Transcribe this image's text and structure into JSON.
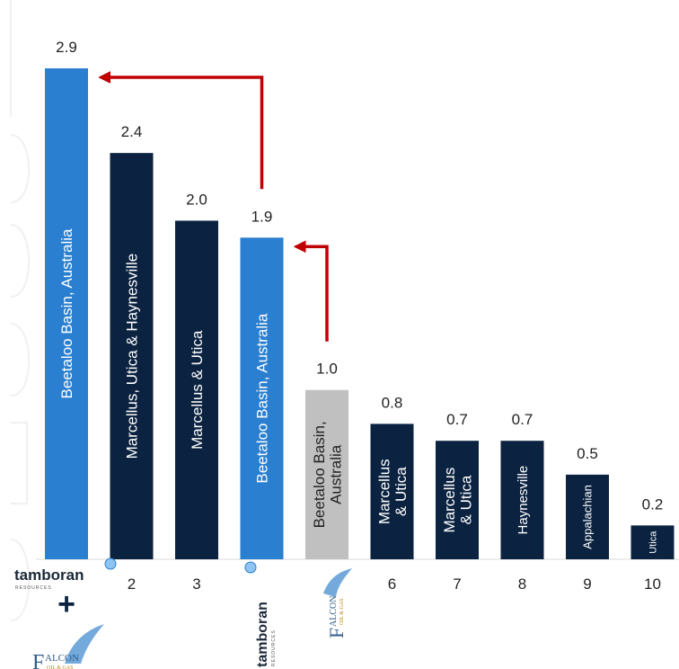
{
  "chart_data": {
    "type": "bar",
    "categories": [
      "tamboran + Falcon",
      "2",
      "3",
      "tamboran",
      "Falcon",
      "6",
      "7",
      "8",
      "9",
      "10"
    ],
    "values": [
      2.9,
      2.4,
      2.0,
      1.9,
      1.0,
      0.8,
      0.7,
      0.7,
      0.5,
      0.2
    ],
    "value_labels": [
      "2.9",
      "2.4",
      "2.0",
      "1.9",
      "1.0",
      "0.8",
      "0.7",
      "0.7",
      "0.5",
      "0.2"
    ],
    "bar_labels": [
      "Beetaloo Basin, Australia",
      "Marcellus, Utica & Haynesville",
      "Marcellus & Utica",
      "Beetaloo Basin, Australia",
      "Beetaloo Basin,|Australia",
      "Marcellus|& Utica",
      "Marcellus|& Utica",
      "Haynesville",
      "Appalachian",
      "Utica"
    ],
    "tick_labels": [
      "",
      "2",
      "3",
      "",
      "",
      "6",
      "7",
      "8",
      "9",
      "10"
    ],
    "bar_colors": [
      "#2a7fd0",
      "#0b2340",
      "#0b2340",
      "#2a7fd0",
      "#c0c0c0",
      "#0b2340",
      "#0b2340",
      "#0b2340",
      "#0b2340",
      "#0b2340"
    ],
    "highlight_color": "#2a7fd0",
    "peer_color": "#0b2340",
    "falcon_color": "#c0c0c0",
    "arrow_color": "#c00000",
    "arrows": [
      {
        "from_bar": 3,
        "to_bar": 0
      },
      {
        "from_bar": 4,
        "to_bar": 3
      }
    ],
    "ylim": [
      0,
      2.9
    ],
    "grid": false,
    "legend": "none"
  },
  "logos": {
    "tamboran": {
      "name": "tamboran",
      "sub": "RESOURCES",
      "icon": "tamboran-dot-logo"
    },
    "falcon": {
      "initial": "F",
      "name": "ALCON",
      "sub": "OIL & GAS",
      "icon": "falcon-wing-logo"
    },
    "plus": "+"
  }
}
